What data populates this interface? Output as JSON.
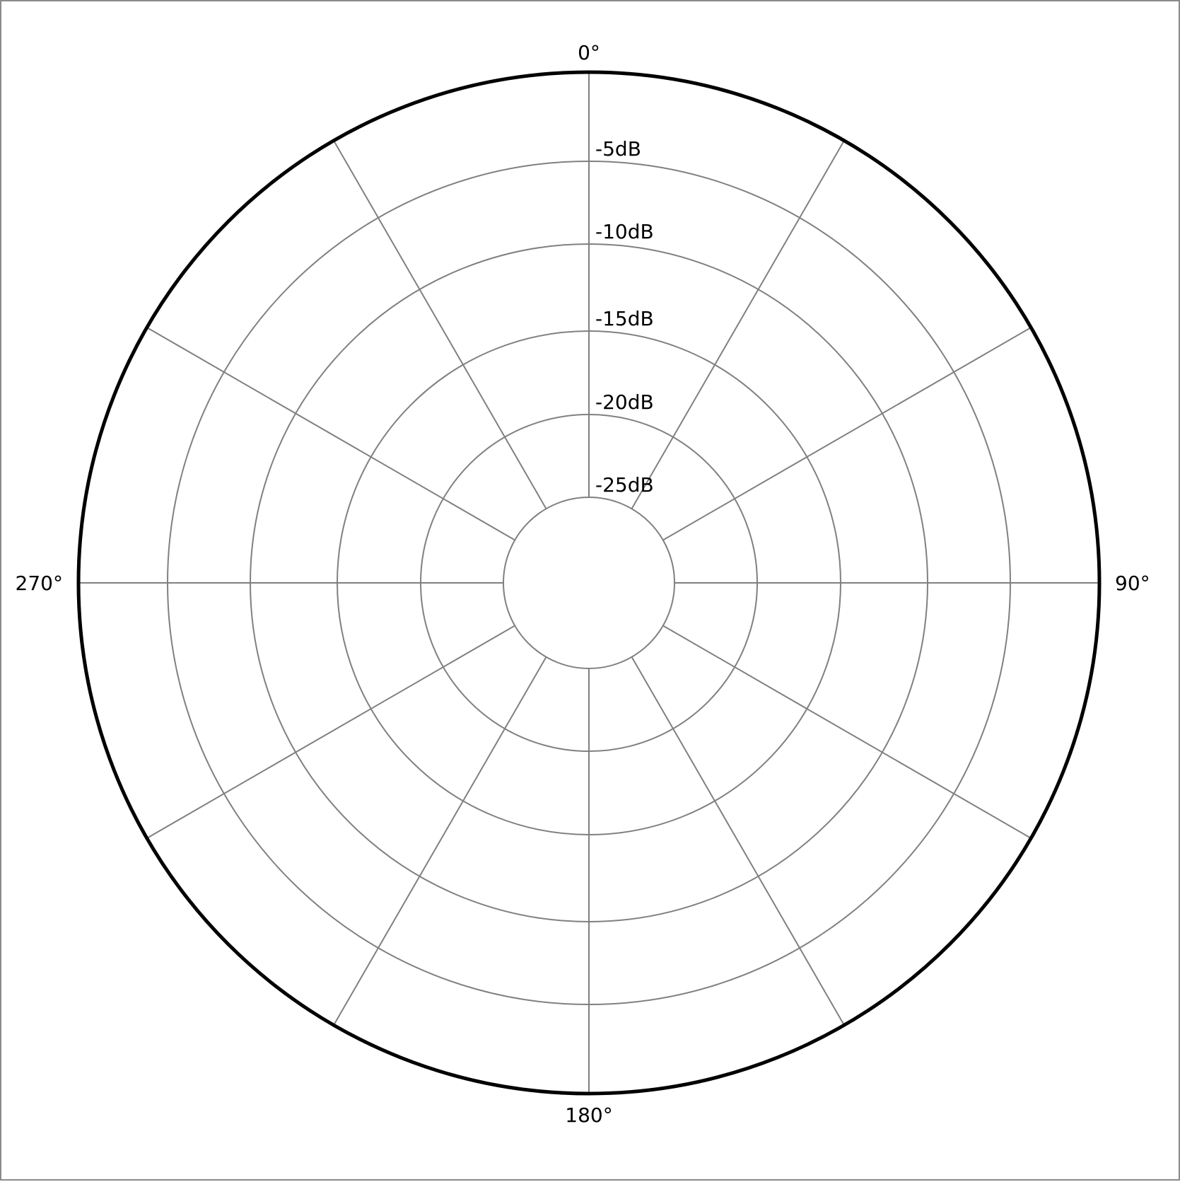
{
  "chart_data": {
    "type": "polar",
    "title": "",
    "angular_ticks": [
      {
        "angle": 0,
        "label": "0°"
      },
      {
        "angle": 90,
        "label": "90°"
      },
      {
        "angle": 180,
        "label": "180°"
      },
      {
        "angle": 270,
        "label": "270°"
      }
    ],
    "spoke_angles": [
      0,
      30,
      60,
      90,
      120,
      150,
      180,
      210,
      240,
      270,
      300,
      330
    ],
    "radial_ticks": [
      {
        "value": -5,
        "label": "-5dB"
      },
      {
        "value": -10,
        "label": "-10dB"
      },
      {
        "value": -15,
        "label": "-15dB"
      },
      {
        "value": -20,
        "label": "-20dB"
      },
      {
        "value": -25,
        "label": "-25dB"
      }
    ],
    "radial_range_db": [
      -30,
      0
    ],
    "direction": "clockwise",
    "zero_location": "top",
    "grid": true,
    "series": [],
    "colors": {
      "outer_ring": "#000000",
      "grid": "#808080",
      "frame": "#8a8a8a"
    }
  }
}
